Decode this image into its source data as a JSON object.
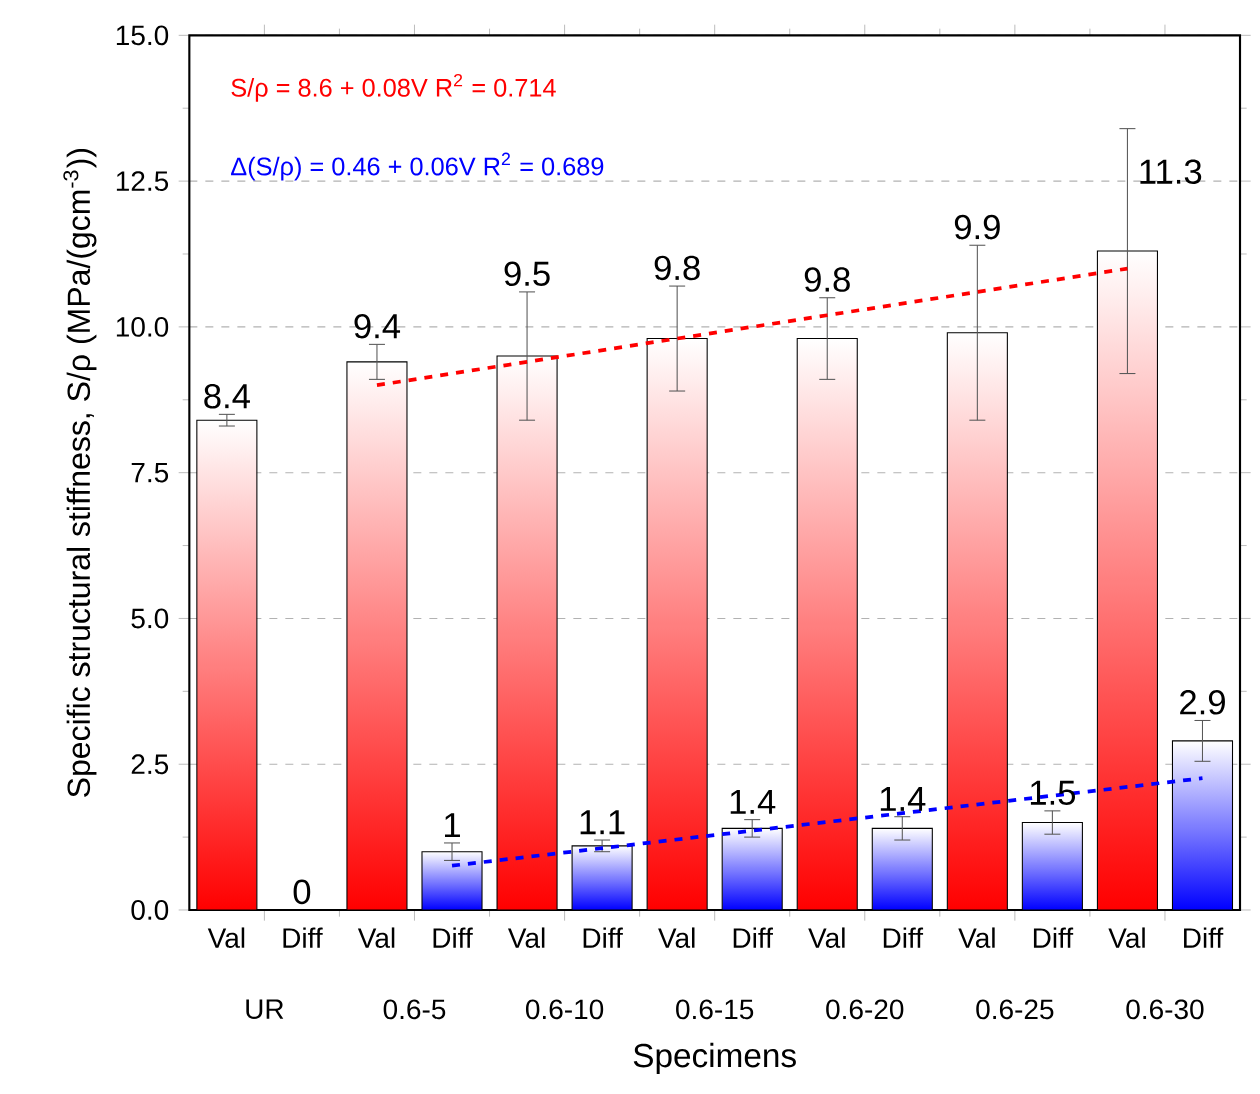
{
  "chart_data": {
    "type": "bar",
    "xlabel": "Specimens",
    "ylabel": "Specific structural stiffness, S/ρ (MPa/(gcm$^{-3}$))",
    "categories": [
      "UR",
      "0.6-5",
      "0.6-10",
      "0.6-15",
      "0.6-20",
      "0.6-25",
      "0.6-30"
    ],
    "series": [
      {
        "name": "Val",
        "color": "#ff0000",
        "values": [
          8.4,
          9.4,
          9.5,
          9.8,
          9.8,
          9.9,
          11.3
        ],
        "errors": [
          0.1,
          0.3,
          1.1,
          0.9,
          0.7,
          1.5,
          2.1
        ],
        "value_labels": [
          "8.4",
          "9.4",
          "9.5",
          "9.8",
          "9.8",
          "9.9",
          "11.3"
        ]
      },
      {
        "name": "Diff",
        "color": "#0000ff",
        "values": [
          0,
          1,
          1.1,
          1.4,
          1.4,
          1.5,
          2.9
        ],
        "errors": [
          null,
          0.15,
          0.1,
          0.15,
          0.2,
          0.2,
          0.35
        ],
        "value_labels": [
          "0",
          "1",
          "1.1",
          "1.4",
          "1.4",
          "1.5",
          "2.9"
        ]
      },
      {
        "name": "S/ρ = 8.6 + 0.08V    R$^{2}$ = 0.714",
        "type": "line",
        "line_style": "dashed",
        "color": "#ff0000",
        "values": [
          null,
          9.0,
          9.4,
          9.8,
          10.2,
          10.6,
          11.0
        ]
      },
      {
        "name": "Δ(S/ρ) = 0.46 + 0.06V    R$^{2}$ = 0.689",
        "type": "line",
        "line_style": "dashed",
        "color": "#0000ff",
        "values": [
          null,
          0.76,
          1.06,
          1.36,
          1.66,
          1.96,
          2.26
        ]
      }
    ],
    "ylim": [
      0,
      15
    ],
    "yticks": [
      {
        "value": 0,
        "label": "0.0"
      },
      {
        "value": 2.5,
        "label": "2.5"
      },
      {
        "value": 5,
        "label": "5.0"
      },
      {
        "value": 7.5,
        "label": "7.5"
      },
      {
        "value": 10,
        "label": "10.0"
      },
      {
        "value": 12.5,
        "label": "12.5"
      },
      {
        "value": 15,
        "label": "15.0"
      }
    ],
    "grid": "y",
    "legend": "bottom"
  }
}
